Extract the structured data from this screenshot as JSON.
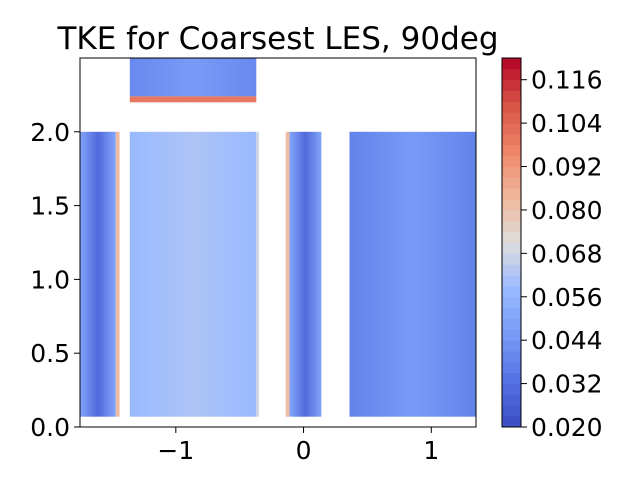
{
  "chart_data": {
    "type": "heatmap",
    "title": "TKE for Coarsest LES, 90deg",
    "xlabel": "",
    "ylabel": "",
    "xlim": [
      -1.75,
      1.35
    ],
    "ylim": [
      0.0,
      2.5
    ],
    "x_ticks": [
      {
        "value": -1,
        "label": "−1"
      },
      {
        "value": 0,
        "label": "0"
      },
      {
        "value": 1,
        "label": "1"
      }
    ],
    "y_ticks": [
      {
        "value": 0.0,
        "label": "0.0"
      },
      {
        "value": 0.5,
        "label": "0.5"
      },
      {
        "value": 1.0,
        "label": "1.0"
      },
      {
        "value": 1.5,
        "label": "1.5"
      },
      {
        "value": 2.0,
        "label": "2.0"
      }
    ],
    "colorbar": {
      "colormap": "coolwarm",
      "range": [
        0.02,
        0.122
      ],
      "ticks": [
        {
          "value": 0.02,
          "label": "0.020"
        },
        {
          "value": 0.032,
          "label": "0.032"
        },
        {
          "value": 0.044,
          "label": "0.044"
        },
        {
          "value": 0.056,
          "label": "0.056"
        },
        {
          "value": 0.068,
          "label": "0.068"
        },
        {
          "value": 0.08,
          "label": "0.080"
        },
        {
          "value": 0.092,
          "label": "0.092"
        },
        {
          "value": 0.104,
          "label": "0.104"
        },
        {
          "value": 0.116,
          "label": "0.116"
        }
      ]
    },
    "regions": [
      {
        "x": [
          -1.75,
          -1.47
        ],
        "y": [
          0.07,
          2.0
        ],
        "base": 0.05,
        "inner": 0.03
      },
      {
        "x": [
          -1.47,
          -1.44
        ],
        "y": [
          0.07,
          2.0
        ],
        "base": 0.082,
        "inner": 0.082
      },
      {
        "x": [
          -1.36,
          -0.37
        ],
        "y": [
          0.07,
          2.0
        ],
        "base": 0.058,
        "inner": 0.062
      },
      {
        "x": [
          -0.37,
          -0.35
        ],
        "y": [
          0.07,
          2.0
        ],
        "base": 0.068,
        "inner": 0.068
      },
      {
        "x": [
          -1.36,
          -0.37
        ],
        "y": [
          2.24,
          2.5
        ],
        "base": 0.04,
        "inner": 0.046
      },
      {
        "x": [
          -1.36,
          -0.37
        ],
        "y": [
          2.2,
          2.24
        ],
        "base": 0.1,
        "inner": 0.1
      },
      {
        "x": [
          -0.14,
          -0.11
        ],
        "y": [
          0.07,
          2.0
        ],
        "base": 0.082,
        "inner": 0.082
      },
      {
        "x": [
          -0.11,
          0.14
        ],
        "y": [
          0.07,
          2.0
        ],
        "base": 0.05,
        "inner": 0.03
      },
      {
        "x": [
          0.36,
          1.35
        ],
        "y": [
          0.07,
          2.0
        ],
        "base": 0.038,
        "inner": 0.046
      }
    ]
  }
}
